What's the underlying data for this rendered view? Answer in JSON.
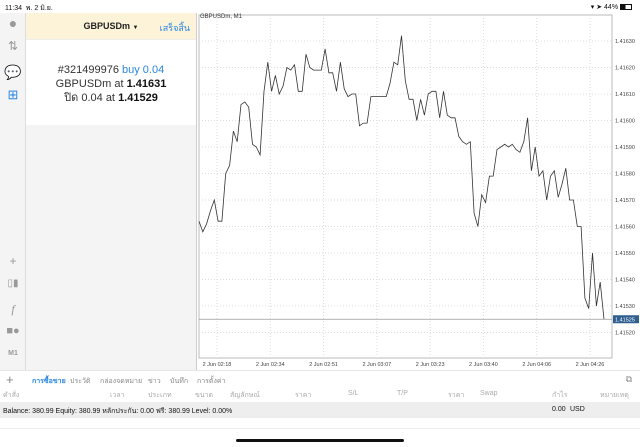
{
  "status": {
    "time": "11:34",
    "date": "พ. 2 มิ.ย.",
    "battery": "44%"
  },
  "sidebar": {
    "icons": [
      "person-icon",
      "up-down-arrows-icon",
      "chat-icon",
      "new-document-icon",
      "crosshair-icon",
      "candlestick-icon",
      "function-icon",
      "objects-icon"
    ],
    "timeframe": "M1"
  },
  "order": {
    "symbol": "GBPUSDm",
    "done": "เสร็จสิ้น",
    "ticket": "#321499976",
    "side": "buy 0.04",
    "at_label": "GBPUSDm at",
    "open_price": "1.41631",
    "close_label": "ปิด 0.04 at",
    "close_price": "1.41529"
  },
  "chart_data": {
    "type": "line",
    "title": "GBPUSDm, M1",
    "ylim": [
      1.41517,
      1.41635
    ],
    "yticks": [
      "1.41630",
      "1.41620",
      "1.41610",
      "1.41600",
      "1.41590",
      "1.41580",
      "1.41570",
      "1.41560",
      "1.41550",
      "1.41540",
      "1.41530",
      "1.41520"
    ],
    "xticks": [
      "2 Jun 02:18",
      "2 Jun 02:34",
      "2 Jun 02:51",
      "2 Jun 03:07",
      "2 Jun 03:23",
      "2 Jun 03:40",
      "2 Jun 04:06",
      "2 Jun 04:26"
    ],
    "current_price": "1.41525",
    "grid": true,
    "values": [
      1.41562,
      1.41558,
      1.41561,
      1.41566,
      1.4157,
      1.41562,
      1.41562,
      1.4158,
      1.41583,
      1.41596,
      1.41592,
      1.41606,
      1.41607,
      1.41605,
      1.41591,
      1.4159,
      1.41587,
      1.41611,
      1.41622,
      1.41611,
      1.41617,
      1.4161,
      1.41613,
      1.4162,
      1.41619,
      1.41621,
      1.41611,
      1.41611,
      1.41625,
      1.4162,
      1.41619,
      1.41619,
      1.41619,
      1.41627,
      1.41618,
      1.41618,
      1.41611,
      1.41622,
      1.41612,
      1.41609,
      1.4161,
      1.4161,
      1.41598,
      1.41599,
      1.41599,
      1.41609,
      1.41609,
      1.41609,
      1.41609,
      1.41609,
      1.41614,
      1.41622,
      1.41621,
      1.41632,
      1.41615,
      1.41608,
      1.41608,
      1.416,
      1.41608,
      1.41602,
      1.4161,
      1.41611,
      1.41611,
      1.41601,
      1.41611,
      1.41602,
      1.41601,
      1.41601,
      1.41594,
      1.41592,
      1.41591,
      1.41592,
      1.41565,
      1.4156,
      1.41572,
      1.41569,
      1.41579,
      1.41579,
      1.41589,
      1.4159,
      1.41591,
      1.4159,
      1.41591,
      1.41589,
      1.41588,
      1.41592,
      1.41601,
      1.41581,
      1.4159,
      1.41579,
      1.41581,
      1.4157,
      1.41579,
      1.41581,
      1.41571,
      1.41576,
      1.41582,
      1.4157,
      1.4157,
      1.4156,
      1.4156,
      1.41533,
      1.41529,
      1.4155,
      1.4153,
      1.41539,
      1.41525
    ]
  },
  "tabs": [
    {
      "label": "การซื้อขาย",
      "active": true
    },
    {
      "label": "ประวัติ"
    },
    {
      "label": "กล่องจดหมาย"
    },
    {
      "label": "ข่าว"
    },
    {
      "label": "บันทึก"
    },
    {
      "label": "การตั้งค่า"
    }
  ],
  "columns": [
    "คำสั่ง",
    "เวลา",
    "ประเภท",
    "ขนาด",
    "สัญลักษณ์",
    "ราคา",
    "S/L",
    "T/P",
    "ราคา",
    "Swap",
    "กำไร",
    "หมายเหตุ"
  ],
  "balance": {
    "text": "Balance: 380.99 Equity: 380.99 หลักประกัน: 0.00 ฟรี: 380.99 Level: 0.00%",
    "profit": "0.00",
    "currency": "USD"
  },
  "colors": {
    "accent": "#2a86e0",
    "header_bg": "#fcf3d9",
    "price_label_bg": "#2f5f8f"
  }
}
